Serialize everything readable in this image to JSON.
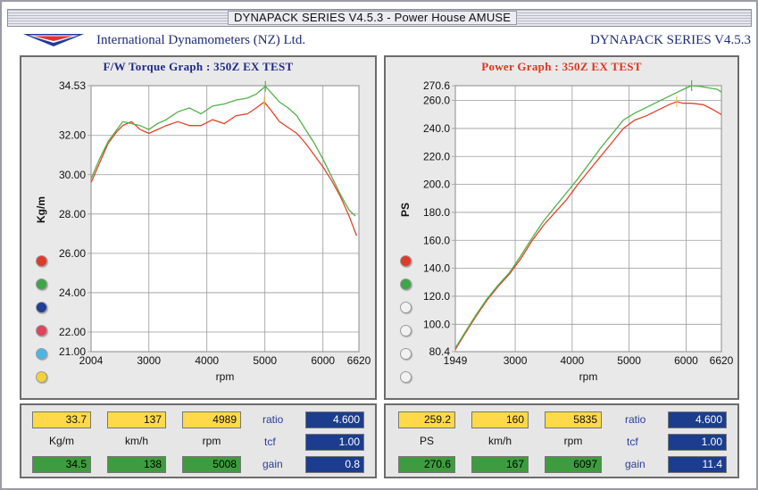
{
  "window": {
    "title": "DYNAPACK SERIES V4.5.3  - Power House AMUSE"
  },
  "header": {
    "company": "International Dynamometers (NZ) Ltd.",
    "product": "DYNAPACK SERIES V4.5.3"
  },
  "colors": {
    "red_run": "#e0442c",
    "green_run": "#52b048",
    "grid": "#9a9a9a",
    "panel_bg": "#e9e9e9"
  },
  "torque_graph": {
    "title": "F/W Torque Graph : 350Z EX TEST",
    "chart_data": {
      "type": "line",
      "title": "F/W Torque Graph : 350Z EX TEST",
      "xlabel": "rpm",
      "ylabel": "Kg/m",
      "xlim": [
        2004,
        6620
      ],
      "ylim": [
        21.0,
        34.53
      ],
      "x_ticks": [
        "2004",
        "3000",
        "4000",
        "5000",
        "6000",
        "6620"
      ],
      "y_ticks": [
        "34.53",
        "32.00",
        "30.00",
        "28.00",
        "26.00",
        "24.00",
        "22.00",
        "21.00"
      ],
      "grid": true,
      "series": [
        {
          "color": "#e0442c",
          "x": [
            2004,
            2150,
            2300,
            2450,
            2550,
            2700,
            2850,
            3000,
            3150,
            3300,
            3500,
            3700,
            3900,
            4100,
            4300,
            4500,
            4700,
            4850,
            4989,
            5100,
            5250,
            5400,
            5550,
            5700,
            5850,
            6000,
            6150,
            6300,
            6450,
            6580
          ],
          "values": [
            29.6,
            30.6,
            31.6,
            32.2,
            32.5,
            32.7,
            32.3,
            32.1,
            32.3,
            32.5,
            32.7,
            32.5,
            32.5,
            32.8,
            32.6,
            33.0,
            33.1,
            33.4,
            33.7,
            33.3,
            32.7,
            32.4,
            32.1,
            31.6,
            31.0,
            30.4,
            29.7,
            28.9,
            27.9,
            26.9
          ]
        },
        {
          "color": "#52b048",
          "x": [
            2004,
            2150,
            2300,
            2450,
            2550,
            2700,
            2850,
            3000,
            3150,
            3300,
            3500,
            3700,
            3900,
            4100,
            4300,
            4500,
            4700,
            4850,
            5008,
            5100,
            5250,
            5400,
            5550,
            5700,
            5850,
            6000,
            6150,
            6300,
            6450,
            6560
          ],
          "values": [
            29.8,
            30.8,
            31.7,
            32.3,
            32.7,
            32.6,
            32.5,
            32.3,
            32.6,
            32.8,
            33.2,
            33.4,
            33.1,
            33.5,
            33.6,
            33.8,
            33.9,
            34.1,
            34.5,
            34.2,
            33.7,
            33.4,
            33.0,
            32.3,
            31.6,
            30.8,
            29.9,
            29.0,
            28.2,
            27.9
          ]
        }
      ]
    },
    "dots": [
      {
        "name": "red-series-dot",
        "color": "#e03a2a"
      },
      {
        "name": "green-series-dot",
        "color": "#3ea54a"
      },
      {
        "name": "blue-series-dot",
        "color": "#233e99"
      },
      {
        "name": "pink-series-dot",
        "color": "#e0445c"
      },
      {
        "name": "cyan-series-dot",
        "color": "#4ab6e8"
      },
      {
        "name": "yellow-series-dot",
        "color": "#f5d03a"
      }
    ]
  },
  "power_graph": {
    "title": "Power Graph : 350Z EX TEST",
    "chart_data": {
      "type": "line",
      "title": "Power Graph : 350Z EX TEST",
      "xlabel": "rpm",
      "ylabel": "PS",
      "xlim": [
        1949,
        6620
      ],
      "ylim": [
        80.4,
        270.6
      ],
      "x_ticks": [
        "1949",
        "3000",
        "4000",
        "5000",
        "6000",
        "6620"
      ],
      "y_ticks": [
        "270.6",
        "260.0",
        "240.0",
        "220.0",
        "200.0",
        "180.0",
        "160.0",
        "140.0",
        "120.0",
        "100.0",
        "80.4"
      ],
      "grid": true,
      "series": [
        {
          "color": "#e0442c",
          "x": [
            1949,
            2100,
            2300,
            2500,
            2700,
            2900,
            3100,
            3300,
            3500,
            3700,
            3900,
            4100,
            4300,
            4500,
            4700,
            4900,
            5100,
            5300,
            5500,
            5700,
            5835,
            5950,
            6100,
            6300,
            6450,
            6620
          ],
          "values": [
            82,
            92,
            105,
            117,
            127,
            136,
            147,
            160,
            171,
            180,
            189,
            200,
            210,
            220,
            230,
            240,
            246,
            249,
            253,
            257,
            259.2,
            258,
            258,
            257,
            254,
            250
          ]
        },
        {
          "color": "#52b048",
          "x": [
            1949,
            2100,
            2300,
            2500,
            2700,
            2900,
            3100,
            3300,
            3500,
            3700,
            3900,
            4100,
            4300,
            4500,
            4700,
            4900,
            5100,
            5300,
            5500,
            5700,
            5900,
            6097,
            6250,
            6400,
            6550,
            6620
          ],
          "values": [
            83,
            93,
            106,
            118,
            128,
            137,
            149,
            162,
            174,
            184,
            194,
            204,
            215,
            226,
            236,
            246,
            251,
            255,
            259,
            263,
            267,
            270.6,
            270,
            269,
            268,
            266
          ]
        }
      ]
    },
    "dots": [
      {
        "name": "red-series-dot",
        "color": "#e03a2a"
      },
      {
        "name": "green-series-dot",
        "color": "#3ea54a"
      },
      {
        "name": "empty-series-dot-3",
        "color": "#f2f2f2"
      },
      {
        "name": "empty-series-dot-4",
        "color": "#f2f2f2"
      },
      {
        "name": "empty-series-dot-5",
        "color": "#f2f2f2"
      },
      {
        "name": "empty-series-dot-6",
        "color": "#f2f2f2"
      }
    ]
  },
  "torque_readout": {
    "row1": [
      "33.7",
      "137",
      "4989"
    ],
    "units": [
      "Kg/m",
      "km/h",
      "rpm"
    ],
    "row2": [
      "34.5",
      "138",
      "5008"
    ],
    "keys": [
      "ratio",
      "tcf",
      "gain"
    ],
    "key_values": [
      "4.600",
      "1.00",
      "0.8"
    ]
  },
  "power_readout": {
    "row1": [
      "259.2",
      "160",
      "5835"
    ],
    "units": [
      "PS",
      "km/h",
      "rpm"
    ],
    "row2": [
      "270.6",
      "167",
      "6097"
    ],
    "keys": [
      "ratio",
      "tcf",
      "gain"
    ],
    "key_values": [
      "4.600",
      "1.00",
      "11.4"
    ]
  }
}
